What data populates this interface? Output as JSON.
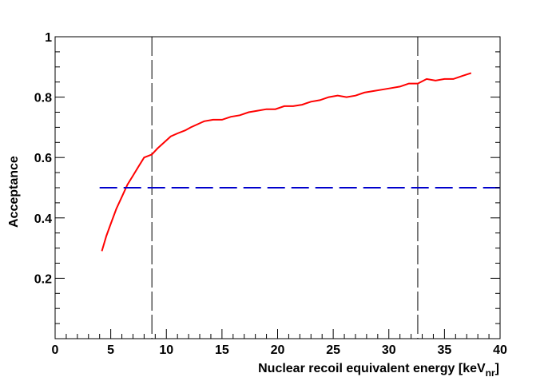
{
  "chart_data": {
    "type": "line",
    "xlabel": "Nuclear recoil equivalent energy [keV",
    "xlabel_sub": "nr",
    "xlabel_close": "]",
    "ylabel": "Acceptance",
    "xlim": [
      0,
      40
    ],
    "ylim": [
      0,
      1
    ],
    "x_ticks": [
      0,
      5,
      10,
      15,
      20,
      25,
      30,
      35,
      40
    ],
    "y_ticks": [
      0.2,
      0.4,
      0.6,
      0.8,
      1
    ],
    "y_tick_labels": [
      "0.2",
      "0.4",
      "0.6",
      "0.8",
      "1"
    ],
    "grid": false,
    "legend": "none",
    "series": [
      {
        "color": "#ff0000",
        "style": "solid",
        "x": [
          4.2,
          4.6,
          5.0,
          5.5,
          6.0,
          6.5,
          7.0,
          7.5,
          8.0,
          8.7,
          9.2,
          9.8,
          10.4,
          11.0,
          11.7,
          12.2,
          12.8,
          13.4,
          14.2,
          15.0,
          15.8,
          16.6,
          17.4,
          18.2,
          19.0,
          19.8,
          20.6,
          21.4,
          22.2,
          23.0,
          23.8,
          24.6,
          25.4,
          26.2,
          27.0,
          27.8,
          28.6,
          29.4,
          30.2,
          31.0,
          31.8,
          32.6,
          33.4,
          34.2,
          35.0,
          35.8,
          36.6,
          37.4
        ],
        "y": [
          0.29,
          0.34,
          0.38,
          0.43,
          0.47,
          0.51,
          0.54,
          0.57,
          0.6,
          0.61,
          0.63,
          0.65,
          0.67,
          0.68,
          0.69,
          0.7,
          0.71,
          0.72,
          0.725,
          0.725,
          0.735,
          0.74,
          0.75,
          0.755,
          0.76,
          0.76,
          0.77,
          0.77,
          0.775,
          0.785,
          0.79,
          0.8,
          0.805,
          0.8,
          0.805,
          0.815,
          0.82,
          0.825,
          0.83,
          0.835,
          0.845,
          0.845,
          0.86,
          0.855,
          0.86,
          0.86,
          0.87,
          0.88
        ]
      },
      {
        "color": "#0000cc",
        "style": "long-dash",
        "x": [
          4.0,
          40.0
        ],
        "y": [
          0.5,
          0.5
        ]
      }
    ],
    "vertical_lines": [
      {
        "x": 8.7,
        "color": "#000000",
        "style": "long-dash"
      },
      {
        "x": 32.6,
        "color": "#000000",
        "style": "long-dash"
      }
    ]
  }
}
